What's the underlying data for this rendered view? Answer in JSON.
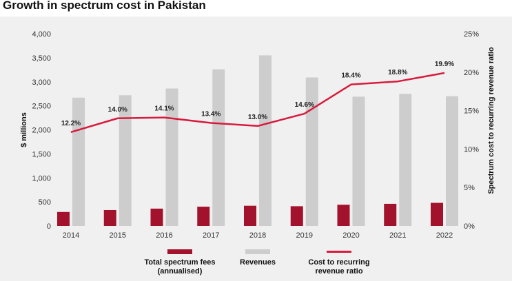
{
  "title": "Growth in spectrum cost in Pakistan",
  "colors": {
    "fees": "#a3122c",
    "revenues": "#cdcdcd",
    "ratio": "#d81a3c",
    "background": "#f0f0f0"
  },
  "chart_data": {
    "type": "bar",
    "categories": [
      "2014",
      "2015",
      "2016",
      "2017",
      "2018",
      "2019",
      "2020",
      "2021",
      "2022"
    ],
    "series": [
      {
        "name": "Total spectrum fees (annualised)",
        "type": "bar",
        "axis": "left",
        "values": [
          290,
          330,
          360,
          400,
          420,
          410,
          440,
          460,
          480
        ]
      },
      {
        "name": "Revenues",
        "type": "bar",
        "axis": "left",
        "values": [
          2670,
          2720,
          2860,
          3260,
          3550,
          3090,
          2690,
          2750,
          2700
        ]
      },
      {
        "name": "Cost to recurring revenue ratio",
        "type": "line",
        "axis": "right",
        "values": [
          12.2,
          14.0,
          14.1,
          13.4,
          13.0,
          14.6,
          18.4,
          18.8,
          19.9
        ],
        "labels": [
          "12.2%",
          "14.0%",
          "14.1%",
          "13.4%",
          "13.0%",
          "14.6%",
          "18.4%",
          "18.8%",
          "19.9%"
        ]
      }
    ],
    "ylabel": "$ millions",
    "y2label": "Spectrum cost to recurring revenue ratio",
    "ylim": [
      0,
      4000
    ],
    "y2lim": [
      0,
      25
    ],
    "yticks": [
      {
        "v": 0,
        "label": "0"
      },
      {
        "v": 500,
        "label": "500"
      },
      {
        "v": 1000,
        "label": "1,000"
      },
      {
        "v": 1500,
        "label": "1,500"
      },
      {
        "v": 2000,
        "label": "2,000"
      },
      {
        "v": 2500,
        "label": "2,500"
      },
      {
        "v": 3000,
        "label": "3,000"
      },
      {
        "v": 3500,
        "label": "3,500"
      },
      {
        "v": 4000,
        "label": "4,000"
      }
    ],
    "y2ticks": [
      {
        "v": 0,
        "label": "0%"
      },
      {
        "v": 5,
        "label": "5%"
      },
      {
        "v": 10,
        "label": "10%"
      },
      {
        "v": 15,
        "label": "15%"
      },
      {
        "v": 20,
        "label": "20%"
      },
      {
        "v": 25,
        "label": "25%"
      }
    ],
    "grid": false,
    "legend": {
      "position": "bottom",
      "items": [
        {
          "kind": "bar",
          "series": 0,
          "lines": [
            "Total spectrum fees",
            "(annualised)"
          ]
        },
        {
          "kind": "bar",
          "series": 1,
          "lines": [
            "Revenues"
          ]
        },
        {
          "kind": "line",
          "series": 2,
          "lines": [
            "Cost to recurring",
            "revenue ratio"
          ]
        }
      ]
    }
  }
}
